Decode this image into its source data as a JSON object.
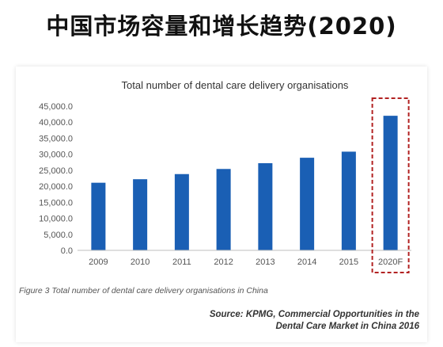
{
  "page": {
    "title": "中国市场容量和增长趋势(2020)"
  },
  "caption": "Figure 3 Total number of dental care delivery organisations in China",
  "source": {
    "line1": "Source: KPMG, Commercial Opportunities in the",
    "line2": "Dental Care Market in China 2016"
  },
  "colors": {
    "bar": "#1a5fb4",
    "highlight_border": "#b22222",
    "axis_text": "#555555",
    "title_text": "#333333"
  },
  "chart_data": {
    "type": "bar",
    "title": "Total number of dental care delivery organisations",
    "xlabel": "",
    "ylabel": "",
    "categories": [
      "2009",
      "2010",
      "2011",
      "2012",
      "2013",
      "2014",
      "2015",
      "2020F"
    ],
    "values": [
      21100,
      22200,
      23800,
      25400,
      27200,
      28900,
      30800,
      42000
    ],
    "ylim": [
      0,
      45000
    ],
    "yticks": [
      "0.0",
      "5,000.0",
      "10,000.0",
      "15,000.0",
      "20,000.0",
      "25,000.0",
      "30,000.0",
      "35,000.0",
      "40,000.0",
      "45,000.0"
    ],
    "ytick_values": [
      0,
      5000,
      10000,
      15000,
      20000,
      25000,
      30000,
      35000,
      40000,
      45000
    ],
    "grid": false,
    "legend": "none",
    "highlighted_category": "2020F"
  }
}
